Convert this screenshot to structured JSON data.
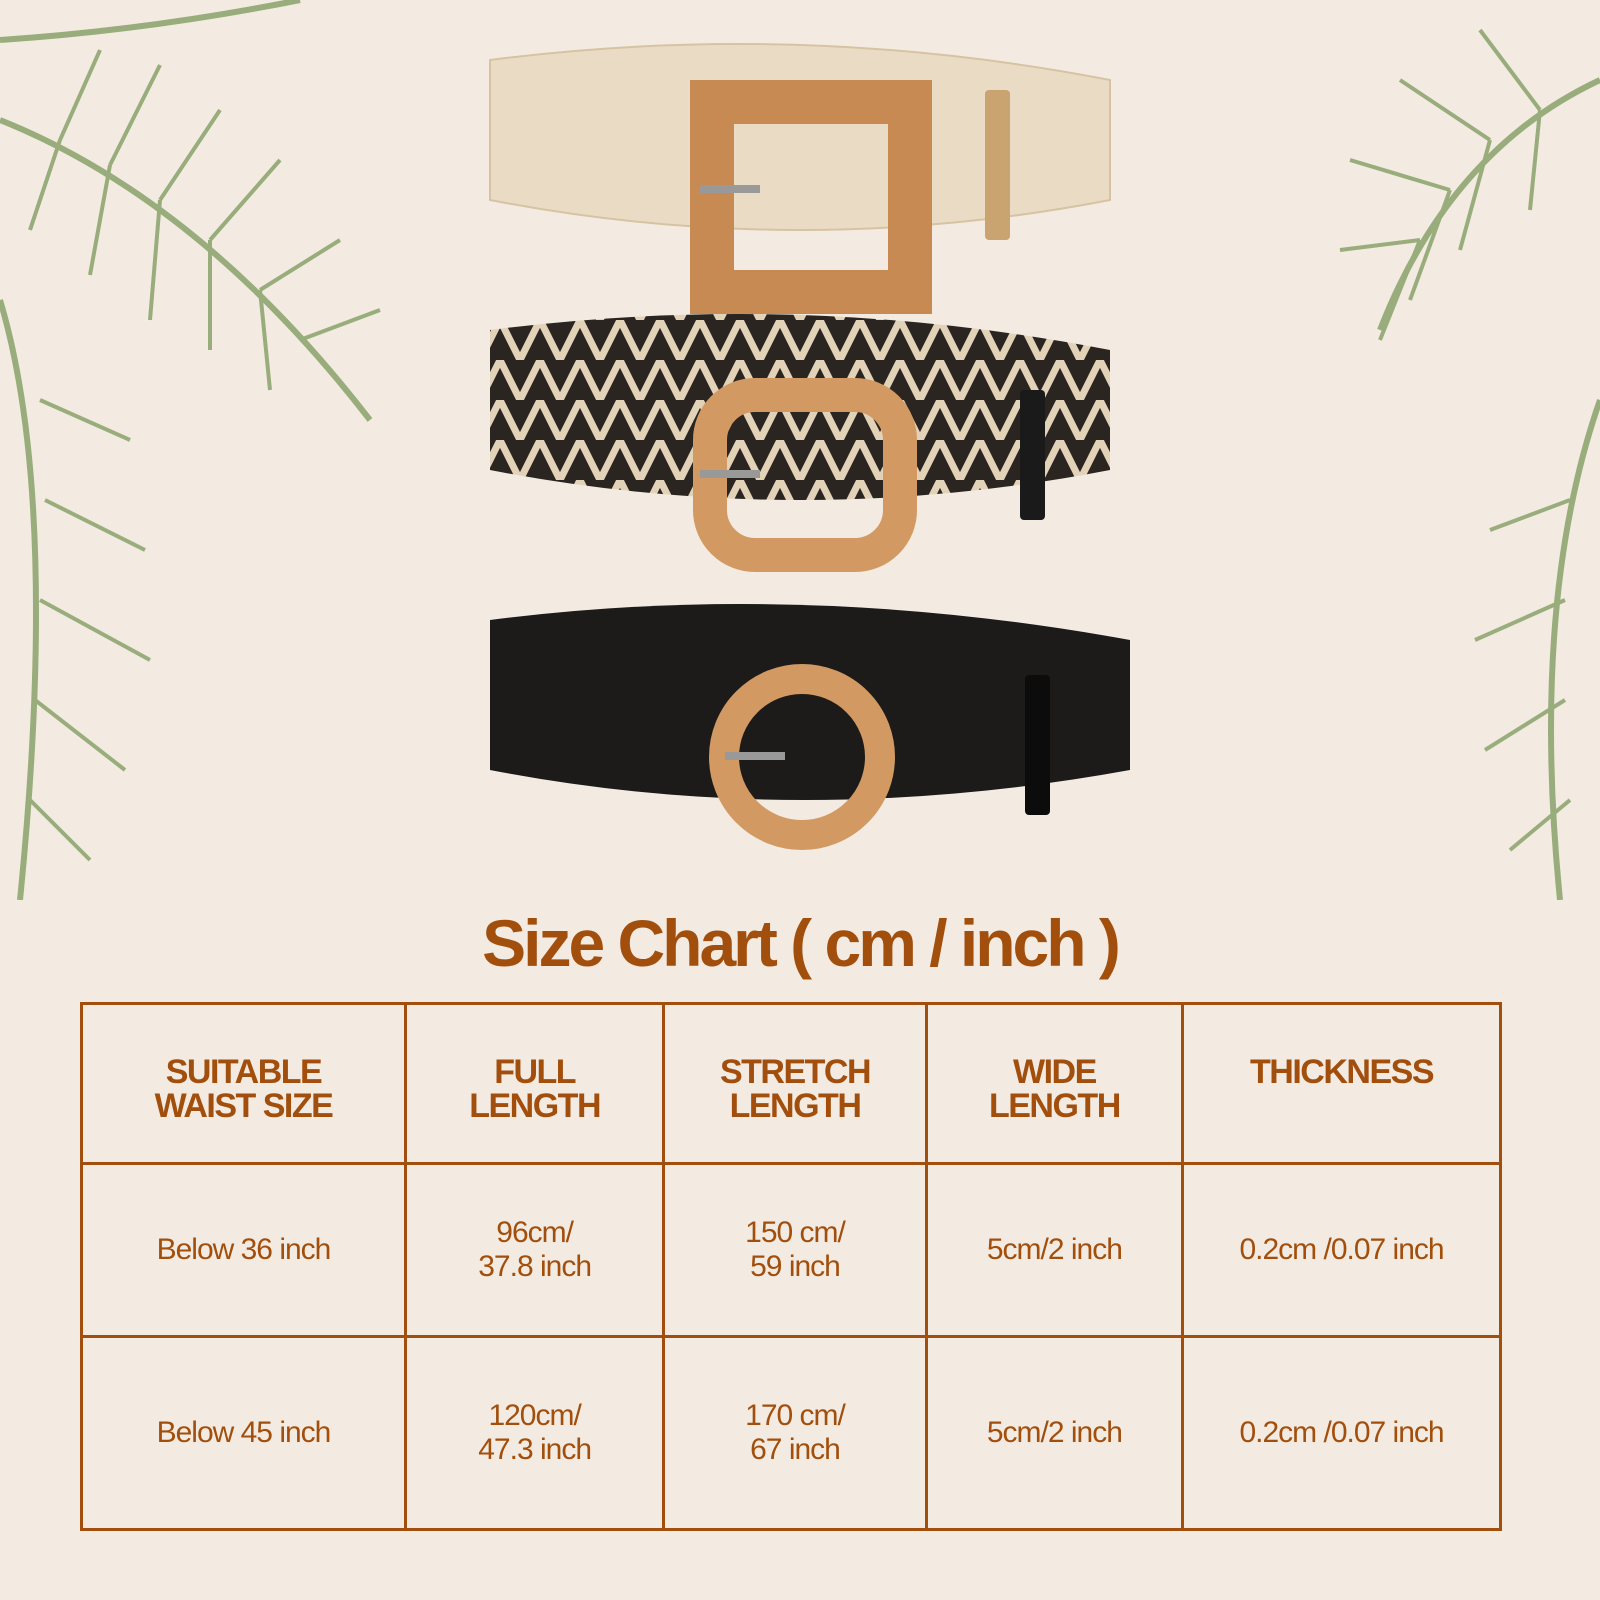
{
  "title": "Size Chart ( cm / inch )",
  "colors": {
    "accent": "#a24f0e",
    "background": "#f3ebe1",
    "palm": "#8aa36b"
  },
  "products": [
    {
      "name": "beige-straw-belt-square-buckle",
      "strap": "#eadcc4",
      "buckle": "#c78a52"
    },
    {
      "name": "black-beige-zigzag-belt-square-buckle",
      "strap": "#2a2520",
      "buckle": "#d29a62"
    },
    {
      "name": "black-straw-belt-round-buckle",
      "strap": "#1c1b1a",
      "buckle": "#d29a62"
    }
  ],
  "table": {
    "headers": [
      "SUITABLE\nWAIST SIZE",
      "FULL\nLENGTH",
      "STRETCH\nLENGTH",
      "WIDE\nLENGTH",
      "THICKNESS"
    ],
    "rows": [
      [
        "Below 36 inch",
        "96cm/\n37.8 inch",
        "150 cm/\n59 inch",
        "5cm/2 inch",
        "0.2cm /0.07 inch"
      ],
      [
        "Below 45 inch",
        "120cm/\n47.3 inch",
        "170 cm/\n67 inch",
        "5cm/2 inch",
        "0.2cm /0.07 inch"
      ]
    ]
  }
}
